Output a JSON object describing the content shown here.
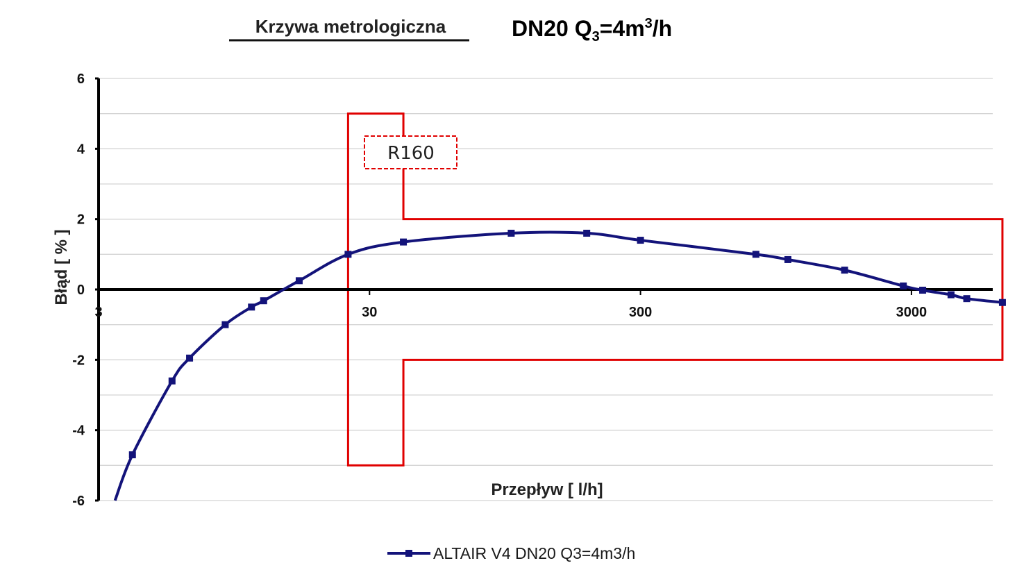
{
  "chart_data": {
    "type": "line",
    "title": "Krzywa metrologiczna",
    "subtitle": {
      "prefix": "DN20 Q",
      "sub": "3",
      "mid": "=4m",
      "sup": "3",
      "suffix": "/h"
    },
    "xlabel": "Przepływ [ l/h]",
    "ylabel": "Błąd [ % ]",
    "x_scale": "log",
    "xlim": [
      3,
      8000
    ],
    "ylim": [
      -6,
      6
    ],
    "x_ticks": [
      {
        "value": 3,
        "label": "3"
      },
      {
        "value": 30,
        "label": "30"
      },
      {
        "value": 300,
        "label": "300"
      },
      {
        "value": 3000,
        "label": "3000"
      }
    ],
    "y_ticks": [
      {
        "value": 6,
        "label": "6"
      },
      {
        "value": 4,
        "label": "4"
      },
      {
        "value": 2,
        "label": "2"
      },
      {
        "value": 0,
        "label": "0"
      },
      {
        "value": -2,
        "label": "-2"
      },
      {
        "value": -4,
        "label": "-4"
      },
      {
        "value": -6,
        "label": "-6"
      }
    ],
    "grid": {
      "horizontal": true,
      "minor_step": 1
    },
    "series": [
      {
        "name": "ALTAIR V4 DN20 Q3=4m3/h",
        "color": "#13137a",
        "marker": "square",
        "points": [
          {
            "x": 4.0,
            "y": -4.7
          },
          {
            "x": 5.6,
            "y": -2.6
          },
          {
            "x": 6.5,
            "y": -1.95
          },
          {
            "x": 8.8,
            "y": -1.0
          },
          {
            "x": 11.0,
            "y": -0.5
          },
          {
            "x": 12.2,
            "y": -0.32
          },
          {
            "x": 16.5,
            "y": 0.25
          },
          {
            "x": 25.0,
            "y": 1.0
          },
          {
            "x": 40.0,
            "y": 1.35
          },
          {
            "x": 100.0,
            "y": 1.6
          },
          {
            "x": 190.0,
            "y": 1.6
          },
          {
            "x": 300.0,
            "y": 1.4
          },
          {
            "x": 800.0,
            "y": 1.0
          },
          {
            "x": 1050.0,
            "y": 0.85
          },
          {
            "x": 1700.0,
            "y": 0.55
          },
          {
            "x": 2800.0,
            "y": 0.1
          },
          {
            "x": 3300.0,
            "y": -0.02
          },
          {
            "x": 4200.0,
            "y": -0.15
          },
          {
            "x": 4800.0,
            "y": -0.26
          },
          {
            "x": 6500.0,
            "y": -0.37
          }
        ],
        "curve_extension": {
          "x": 3.45,
          "y": -6
        }
      }
    ],
    "error_limits": {
      "label": "R160",
      "color": "#e00000",
      "low_band": {
        "x": [
          25,
          40
        ],
        "y": [
          -5,
          5
        ]
      },
      "high_band": {
        "x": [
          40,
          6500
        ],
        "y": [
          -2,
          2
        ]
      }
    },
    "legend": {
      "position": "bottom-center",
      "entries": [
        "ALTAIR V4 DN20 Q3=4m3/h"
      ]
    }
  }
}
